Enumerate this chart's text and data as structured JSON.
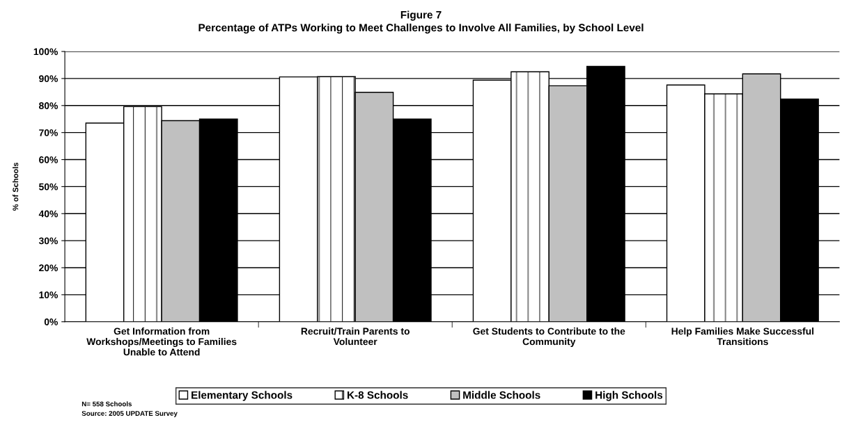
{
  "chart_data": {
    "type": "bar",
    "title": "Figure 7",
    "subtitle": "Percentage of ATPs Working to Meet Challenges to Involve All Families, by School Level",
    "ylabel": "% of Schools",
    "categories": [
      "Get Information from\nWorkshops/Meetings to Families\nUnable to Attend",
      "Recruit/Train Parents to\nVolunteer",
      "Get Students to Contribute to the\nCommunity",
      "Help Families Make Successful\nTransitions"
    ],
    "series": [
      {
        "name": "Elementary Schools",
        "color": "#ffffff",
        "values": [
          73.5,
          90.6,
          89.4,
          87.6
        ]
      },
      {
        "name": "K-8 Schools",
        "color": "#ffffff",
        "values": [
          79.6,
          90.7,
          92.5,
          84.3
        ]
      },
      {
        "name": "Middle Schools",
        "color": "#c0c0c0",
        "values": [
          74.4,
          84.9,
          87.3,
          91.7
        ]
      },
      {
        "name": "High Schools",
        "color": "#000000",
        "values": [
          75.0,
          75.0,
          94.5,
          82.4
        ]
      }
    ],
    "ylim": [
      0,
      100
    ],
    "yticks": [
      {
        "value": 0,
        "label": "0%"
      },
      {
        "value": 10,
        "label": "10%"
      },
      {
        "value": 20,
        "label": "20%"
      },
      {
        "value": 30,
        "label": "30%"
      },
      {
        "value": 40,
        "label": "40%"
      },
      {
        "value": 50,
        "label": "50%"
      },
      {
        "value": 60,
        "label": "60%"
      },
      {
        "value": 70,
        "label": "70%"
      },
      {
        "value": 80,
        "label": "80%"
      },
      {
        "value": 90,
        "label": "90%"
      },
      {
        "value": 100,
        "label": "100%"
      }
    ],
    "grid": "y",
    "legend": "bottom",
    "annotations": [
      "N= 558 Schools",
      "Source: 2005 UPDATE Survey"
    ]
  }
}
